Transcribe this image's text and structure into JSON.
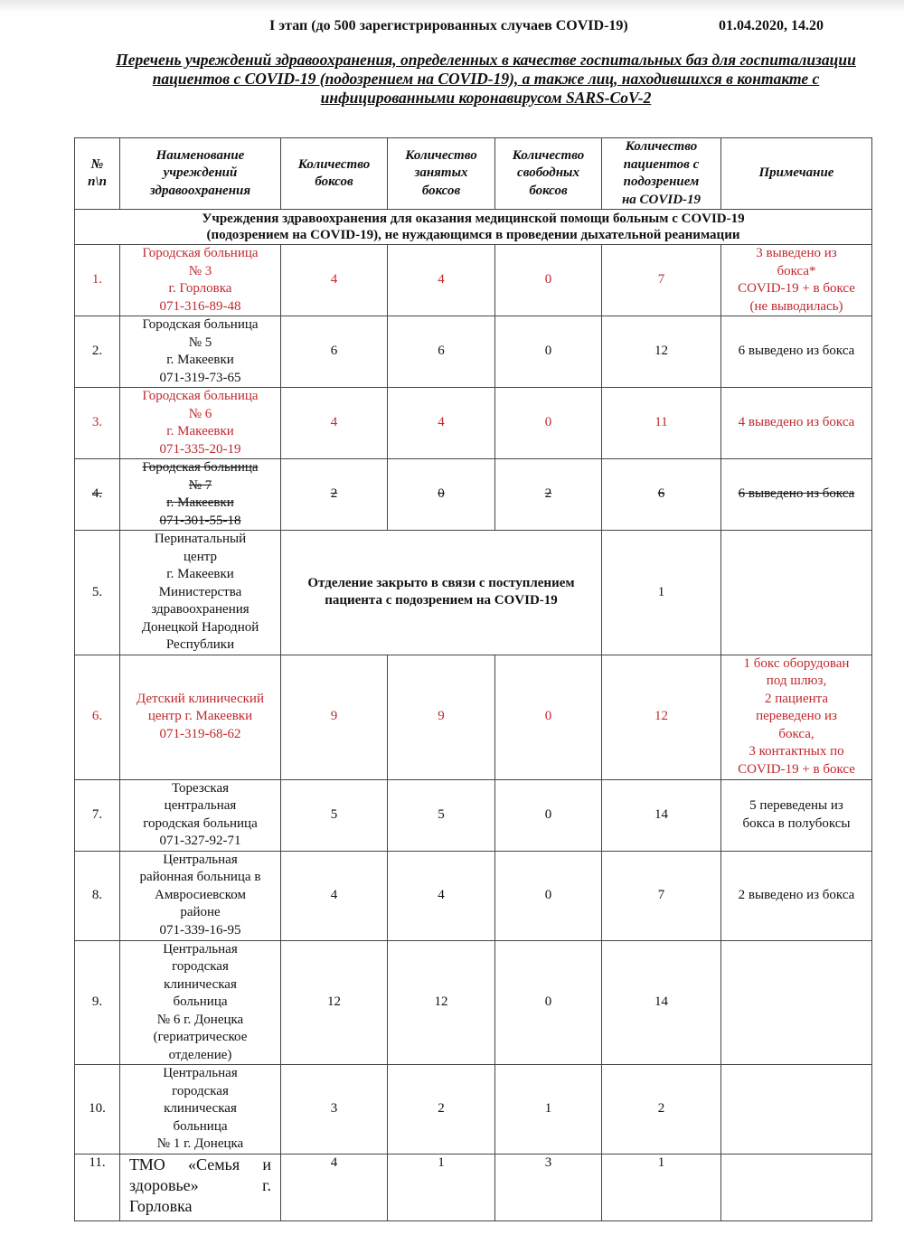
{
  "header": {
    "stage": "I этап (до 500 зарегистрированных случаев COVID-19)",
    "datetime": "01.04.2020, 14.20",
    "title": "Перечень учреждений здравоохранения, определенных в качестве госпитальных баз для госпитализации пациентов с COVID-19 (подозрением на COVID-19), а также лиц, находившихся в контакте с инфицированными коронавирусом SARS-CoV-2"
  },
  "table": {
    "columns": [
      "№\nп\\п",
      "Наименование\nучреждений\nздравоохранения",
      "Количество\nбоксов",
      "Количество\nзанятых\nбоксов",
      "Количество\nсвободных\nбоксов",
      "Количество\nпациентов с\nподозрением\nна COVID-19",
      "Примечание"
    ],
    "section": "Учреждения здравоохранения для оказания медицинской помощи больным с COVID-19\n(подозрением на COVID-19), не нуждающимся в проведении дыхательной реанимации",
    "rows": [
      {
        "n": "1.",
        "name": "Городская больница\n№ 3\nг. Горловка\n071-316-89-48",
        "boxes": "4",
        "occupied": "4",
        "free": "0",
        "suspected": "7",
        "note": "3 выведено из\nбокса*\nCOVID-19 + в боксе\n(не выводилась)"
      },
      {
        "n": "2.",
        "name": "Городская больница\n№ 5\nг. Макеевки\n071-319-73-65",
        "boxes": "6",
        "occupied": "6",
        "free": "0",
        "suspected": "12",
        "note": "6 выведено из бокса"
      },
      {
        "n": "3.",
        "name": "Городская больница\n№ 6\nг. Макеевки\n071-335-20-19",
        "boxes": "4",
        "occupied": "4",
        "free": "0",
        "suspected": "11",
        "note": "4 выведено из бокса"
      },
      {
        "n": "4.",
        "name": "Городская больница\n№ 7\nг. Макеевки\n071-301-55-18",
        "boxes": "2",
        "occupied": "0",
        "free": "2",
        "suspected": "6",
        "note": "6 выведено из бокса"
      },
      {
        "n": "5.",
        "name": "Перинатальный\nцентр\nг. Макеевки\nМинистерства\nздравоохранения\nДонецкой Народной\nРеспублики",
        "merged": "Отделение закрыто в связи с поступлением\nпациента с подозрением на COVID-19",
        "suspected": "1",
        "note": ""
      },
      {
        "n": "6.",
        "name": "Детский клинический\nцентр г. Макеевки\n071-319-68-62",
        "boxes": "9",
        "occupied": "9",
        "free": "0",
        "suspected": "12",
        "note": "1 бокс оборудован\nпод шлюз,\n2 пациента\nпереведено из\nбокса,\n3 контактных по\nCOVID-19 + в боксе"
      },
      {
        "n": "7.",
        "name": "Торезская\nцентральная\nгородская больница\n071-327-92-71",
        "boxes": "5",
        "occupied": "5",
        "free": "0",
        "suspected": "14",
        "note": "5 переведены из\nбокса в полубоксы"
      },
      {
        "n": "8.",
        "name": "Центральная\nрайонная больница в\nАмвросиевском\nрайоне\n071-339-16-95",
        "boxes": "4",
        "occupied": "4",
        "free": "0",
        "suspected": "7",
        "note": "2 выведено из бокса"
      },
      {
        "n": "9.",
        "name": "Центральная\nгородская\nклиническая\nбольница\n№ 6 г. Донецка\n(гериатрическое\nотделение)",
        "boxes": "12",
        "occupied": "12",
        "free": "0",
        "suspected": "14",
        "note": ""
      },
      {
        "n": "10.",
        "name": "Центральная\nгородская\nклиническая\nбольница\n№ 1 г. Донецка",
        "boxes": "3",
        "occupied": "2",
        "free": "1",
        "suspected": "2",
        "note": ""
      },
      {
        "n": "11.",
        "name": "ТМО «Семья и здоровье» г. Горловка",
        "boxes": "4",
        "occupied": "1",
        "free": "3",
        "suspected": "1",
        "note": ""
      }
    ]
  },
  "colors": {
    "highlight": "#c0282d"
  }
}
